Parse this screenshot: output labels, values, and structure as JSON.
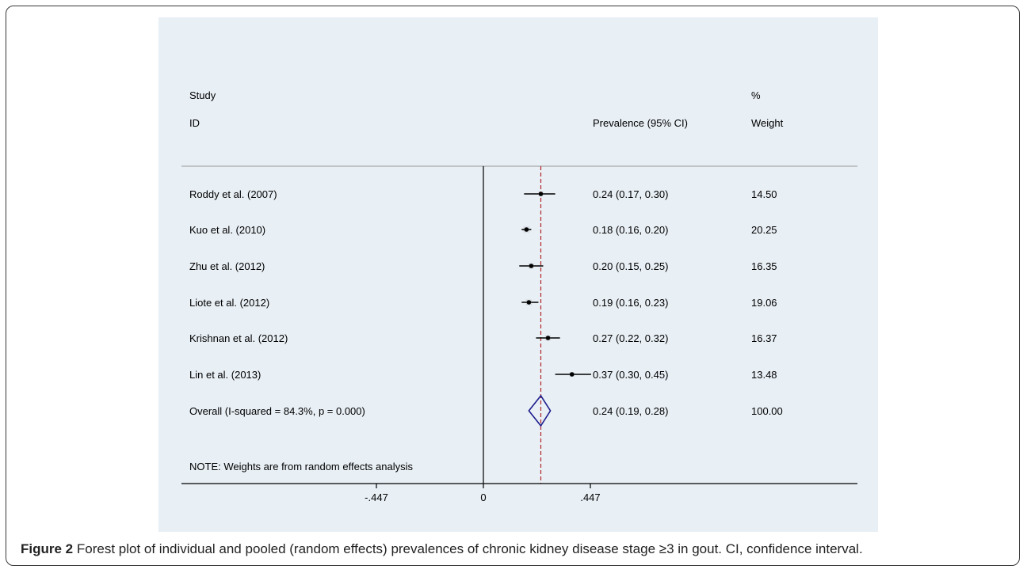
{
  "figure": {
    "label": "Figure 2",
    "caption": "Forest plot of individual and pooled (random effects) prevalences of chronic kidney disease stage ≥3 in gout. CI, confidence interval."
  },
  "chart_data": {
    "type": "forest",
    "column_headers": {
      "study_line1": "Study",
      "study_line2": "ID",
      "effect": "Prevalence (95% CI)",
      "weight_line1": "%",
      "weight_line2": "Weight"
    },
    "studies": [
      {
        "label": "Roddy et al. (2007)",
        "estimate": 0.24,
        "ci_low": 0.17,
        "ci_high": 0.3,
        "ci_text": "0.24 (0.17, 0.30)",
        "weight": "14.50"
      },
      {
        "label": "Kuo et al. (2010)",
        "estimate": 0.18,
        "ci_low": 0.16,
        "ci_high": 0.2,
        "ci_text": "0.18 (0.16, 0.20)",
        "weight": "20.25"
      },
      {
        "label": "Zhu et al. (2012)",
        "estimate": 0.2,
        "ci_low": 0.15,
        "ci_high": 0.25,
        "ci_text": "0.20 (0.15, 0.25)",
        "weight": "16.35"
      },
      {
        "label": "Liote et al. (2012)",
        "estimate": 0.19,
        "ci_low": 0.16,
        "ci_high": 0.23,
        "ci_text": "0.19 (0.16, 0.23)",
        "weight": "19.06"
      },
      {
        "label": "Krishnan et al. (2012)",
        "estimate": 0.27,
        "ci_low": 0.22,
        "ci_high": 0.32,
        "ci_text": "0.27 (0.22, 0.32)",
        "weight": "16.37"
      },
      {
        "label": "Lin et al. (2013)",
        "estimate": 0.37,
        "ci_low": 0.3,
        "ci_high": 0.45,
        "ci_text": "0.37 (0.30, 0.45)",
        "weight": "13.48"
      }
    ],
    "overall": {
      "label": "Overall  (I-squared = 84.3%, p = 0.000)",
      "estimate": 0.24,
      "ci_low": 0.19,
      "ci_high": 0.28,
      "ci_text": "0.24 (0.19, 0.28)",
      "weight": "100.00"
    },
    "note": "NOTE: Weights are from random effects analysis",
    "x_ticks": [
      -0.447,
      0,
      0.447
    ],
    "x_tick_labels": [
      "-.447",
      "0",
      ".447"
    ],
    "xlim": [
      -0.78,
      0.6
    ],
    "null_line": 0,
    "colors": {
      "panel_bg": "#e8eff5",
      "diamond": "#1c1c8c",
      "overall_line": "#b0262a",
      "ink": "#000000"
    }
  }
}
